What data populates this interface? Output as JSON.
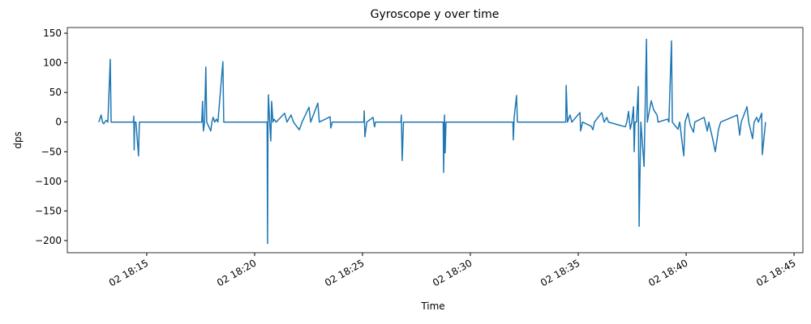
{
  "chart_data": {
    "type": "line",
    "title": "Gyroscope y over time",
    "xlabel": "Time",
    "ylabel": "dps",
    "color": "#1f77b4",
    "x": [
      12.78,
      12.89,
      12.95,
      13.01,
      13.06,
      13.12,
      13.2,
      13.31,
      13.35,
      14.38,
      14.4,
      14.42,
      14.44,
      14.5,
      14.62,
      14.66,
      17.55,
      17.59,
      17.61,
      17.63,
      17.68,
      17.74,
      17.78,
      17.97,
      18.02,
      18.08,
      18.15,
      18.23,
      18.3,
      18.53,
      18.57,
      20.58,
      20.6,
      20.62,
      20.64,
      20.7,
      20.75,
      20.77,
      20.79,
      20.85,
      20.9,
      21.0,
      21.39,
      21.5,
      21.69,
      21.8,
      22.07,
      22.2,
      22.52,
      22.6,
      22.93,
      23.0,
      23.5,
      23.53,
      23.6,
      25.06,
      25.08,
      25.11,
      25.2,
      25.49,
      25.52,
      25.56,
      25.6,
      26.78,
      26.8,
      26.84,
      26.9,
      28.74,
      28.76,
      28.8,
      28.83,
      28.87,
      31.97,
      31.99,
      32.03,
      32.14,
      32.18,
      34.42,
      34.44,
      34.5,
      34.62,
      34.7,
      35.08,
      35.11,
      35.2,
      35.6,
      35.68,
      35.75,
      36.09,
      36.2,
      36.32,
      36.4,
      37.18,
      37.25,
      37.33,
      37.41,
      37.48,
      37.56,
      37.59,
      37.63,
      37.7,
      37.78,
      37.82,
      37.9,
      38.05,
      38.16,
      38.2,
      38.38,
      38.5,
      38.65,
      38.7,
      39.14,
      39.2,
      39.32,
      39.36,
      39.62,
      39.7,
      39.89,
      39.95,
      40.08,
      40.19,
      40.34,
      40.4,
      40.83,
      40.98,
      41.05,
      41.24,
      41.35,
      41.5,
      41.6,
      42.37,
      42.48,
      42.55,
      42.82,
      42.9,
      43.08,
      43.15,
      43.27,
      43.35,
      43.5,
      43.53,
      43.68
    ],
    "values": [
      0,
      12,
      0,
      -3,
      0,
      3,
      0,
      106,
      0,
      0,
      10,
      -47,
      0,
      0,
      -57,
      0,
      0,
      35,
      0,
      -15,
      0,
      93,
      0,
      -15,
      0,
      8,
      0,
      5,
      0,
      102,
      0,
      0,
      -205,
      0,
      46,
      0,
      -32,
      0,
      35,
      0,
      5,
      0,
      15,
      0,
      12,
      0,
      -13,
      0,
      25,
      0,
      32,
      0,
      9,
      -10,
      0,
      0,
      19,
      -25,
      0,
      8,
      0,
      -8,
      0,
      0,
      12,
      -65,
      0,
      0,
      -85,
      12,
      -52,
      0,
      0,
      -30,
      8,
      45,
      0,
      0,
      62,
      0,
      12,
      0,
      16,
      -15,
      0,
      -7,
      -13,
      0,
      16,
      0,
      8,
      0,
      -8,
      0,
      18,
      -12,
      0,
      26,
      -50,
      0,
      0,
      60,
      -176,
      0,
      -75,
      140,
      0,
      36,
      20,
      12,
      0,
      5,
      0,
      137,
      0,
      -12,
      0,
      -57,
      0,
      15,
      -5,
      -17,
      0,
      8,
      -15,
      0,
      -30,
      -50,
      -12,
      0,
      12,
      -22,
      0,
      26,
      0,
      -28,
      0,
      8,
      0,
      15,
      -55,
      0
    ],
    "xlim": [
      11.32,
      45.41
    ],
    "xticks": [
      {
        "value": 15,
        "label": "02 18:15"
      },
      {
        "value": 20,
        "label": "02 18:20"
      },
      {
        "value": 25,
        "label": "02 18:25"
      },
      {
        "value": 30,
        "label": "02 18:30"
      },
      {
        "value": 35,
        "label": "02 18:35"
      },
      {
        "value": 40,
        "label": "02 18:40"
      },
      {
        "value": 45,
        "label": "02 18:45"
      }
    ],
    "ylim": [
      -220.5,
      159.6
    ],
    "yticks": [
      150,
      100,
      50,
      0,
      {
        "value": -50,
        "label": "−50"
      },
      {
        "value": -100,
        "label": "−100"
      },
      {
        "value": -150,
        "label": "−150"
      },
      {
        "value": -200,
        "label": "−200"
      }
    ]
  }
}
